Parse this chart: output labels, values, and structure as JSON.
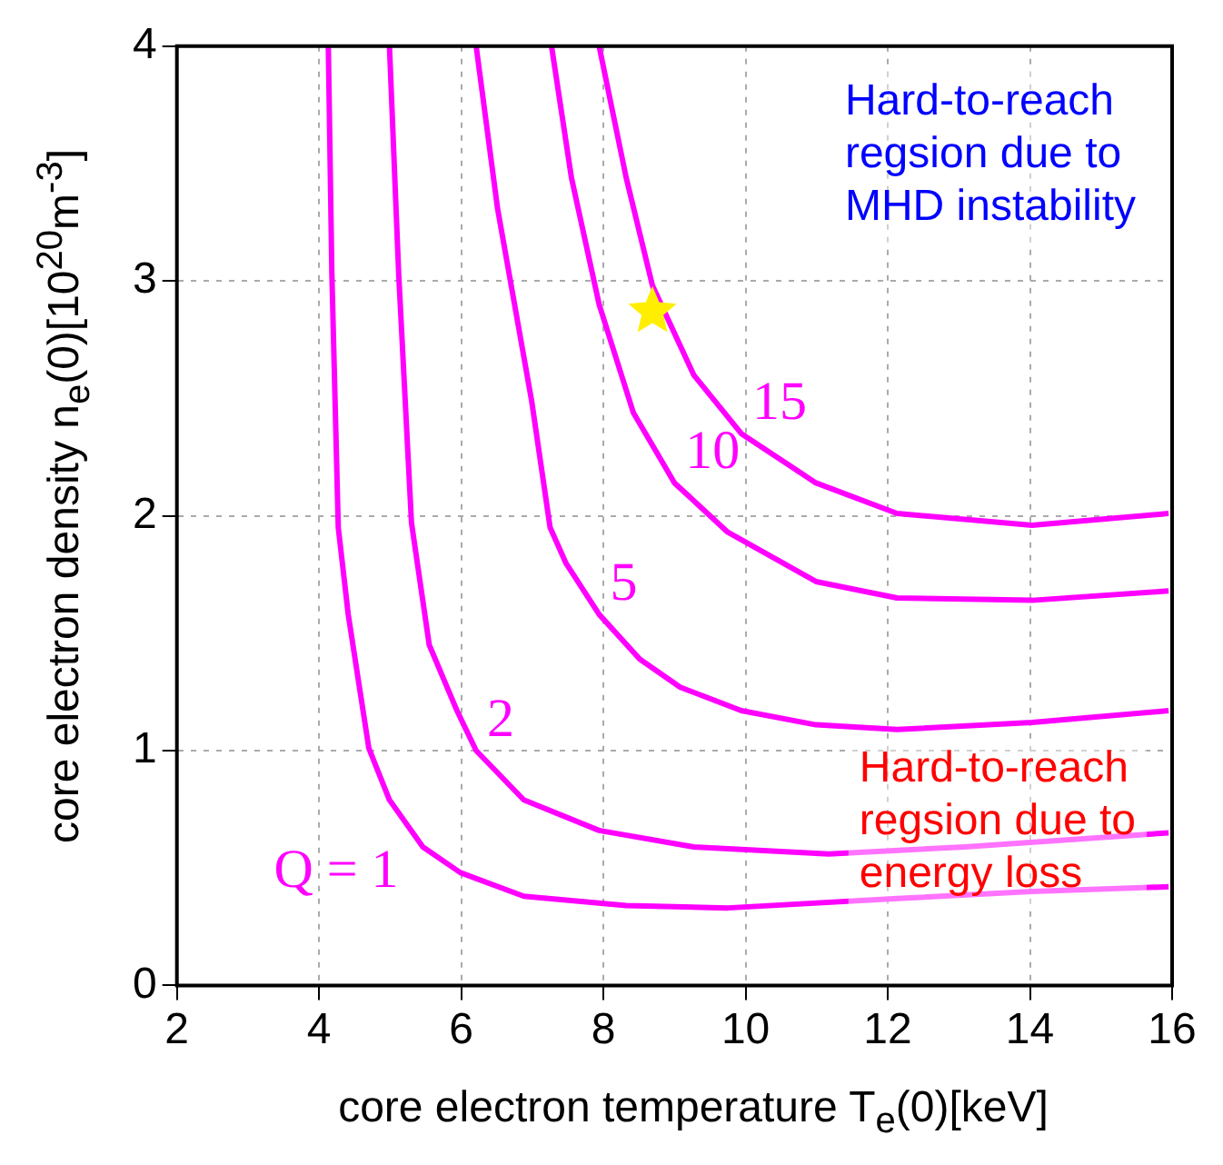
{
  "chart_data": {
    "type": "line",
    "xlabel": "core electron temperature T$_{e}$(0)[keV]",
    "ylabel": "core electron density n$_{e}$(0)[10$^{20}$m$^{-3}$]",
    "xlim": [
      2,
      16
    ],
    "xticks": [
      2,
      4,
      6,
      8,
      10,
      12,
      14,
      16
    ],
    "ylim": [
      0,
      4
    ],
    "yticks": [
      0,
      1,
      2,
      3,
      4
    ],
    "grid": true,
    "legend": false,
    "marker": "none",
    "line_style": "solid",
    "series": [
      {
        "type": "line",
        "name": "Q = 1",
        "color": "#ff00ff",
        "x": [
          4.13,
          4.18,
          4.27,
          4.41,
          4.7,
          4.99,
          5.46,
          5.99,
          6.88,
          8.32,
          9.75,
          12.13,
          14.03,
          15.95
        ],
        "values": [
          4.0,
          3.03,
          1.95,
          1.58,
          1.01,
          0.79,
          0.59,
          0.48,
          0.38,
          0.34,
          0.33,
          0.37,
          0.4,
          0.42
        ]
      },
      {
        "type": "line",
        "name": "2",
        "color": "#ff00ff",
        "x": [
          4.99,
          5.12,
          5.3,
          5.55,
          5.94,
          6.21,
          6.88,
          7.94,
          9.27,
          11.17,
          13.08,
          15.95
        ],
        "values": [
          4.0,
          3.03,
          1.97,
          1.45,
          1.17,
          1.0,
          0.79,
          0.66,
          0.59,
          0.56,
          0.59,
          0.65
        ]
      },
      {
        "type": "line",
        "name": "5",
        "color": "#ff00ff",
        "x": [
          6.21,
          6.51,
          6.99,
          7.25,
          7.47,
          7.94,
          8.51,
          9.08,
          9.94,
          10.99,
          12.13,
          14.03,
          15.95
        ],
        "values": [
          4.0,
          3.31,
          2.49,
          1.95,
          1.8,
          1.58,
          1.39,
          1.27,
          1.17,
          1.11,
          1.09,
          1.12,
          1.17
        ]
      },
      {
        "type": "line",
        "name": "10",
        "color": "#ff00ff",
        "x": [
          7.27,
          7.55,
          7.94,
          8.42,
          9.0,
          9.75,
          10.99,
          12.13,
          14.03,
          15.95
        ],
        "values": [
          4.0,
          3.44,
          2.9,
          2.44,
          2.14,
          1.93,
          1.72,
          1.65,
          1.64,
          1.68
        ]
      },
      {
        "type": "line",
        "name": "15",
        "color": "#ff00ff",
        "x": [
          7.94,
          8.32,
          8.69,
          9.27,
          9.94,
          10.99,
          12.13,
          14.03,
          15.95
        ],
        "values": [
          4.0,
          3.44,
          2.98,
          2.6,
          2.35,
          2.14,
          2.01,
          1.96,
          2.01
        ]
      },
      {
        "type": "scatter",
        "color": "#ffee00",
        "marker": "star",
        "x": [
          8.69
        ],
        "values": [
          2.87
        ]
      }
    ],
    "annotations": [
      "Hard-to-reach\nregsion due to\nMHD instability",
      "Hard-to-reach\nregsion due to\nenergy loss"
    ]
  }
}
